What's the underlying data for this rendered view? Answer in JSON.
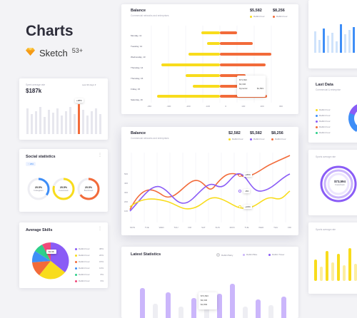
{
  "brand": {
    "title": "Charts",
    "app": "Sketch",
    "count": "53+"
  },
  "top_balance": {
    "title": "Balance",
    "subtitle": "Commercial networks and enterprises",
    "val1": "$5,582",
    "val2": "$8,256",
    "legend1": "Rabbit Four",
    "legend2": "Rabbit Four",
    "days": [
      "Monday, 11",
      "Tuesday, 12",
      "Wednesday, 13",
      "Thursday, 14",
      "Thursday, 15",
      "Friday, 15",
      "Saturday, 16",
      "Sunday, 17"
    ],
    "xticks": [
      "-360",
      "-300",
      "-200",
      "-100",
      "0",
      "100",
      "200",
      "300"
    ],
    "tooltip": {
      "a": "$73,693",
      "b": "$3,346",
      "label": "Dynamic",
      "val": "$1,893"
    },
    "colors": {
      "yellow": "#f8dc1c",
      "orange": "#f26b3a"
    }
  },
  "spent": {
    "title": "Spent average rate",
    "value": "$187k",
    "filter": "Last 30 days",
    "badge": "+28%"
  },
  "social": {
    "title": "Social statistics",
    "badge": "↑ 18%",
    "rings": [
      {
        "pct": "25.5%",
        "name": "Instagram",
        "color": "#3e8ef7",
        "level": 0.35
      },
      {
        "pct": "25.5%",
        "name": "Facebook",
        "color": "#f8dc1c",
        "level": 0.8
      },
      {
        "pct": "25.5%",
        "name": "Buzzfeed",
        "color": "#f26b3a",
        "level": 0.65
      }
    ]
  },
  "skills": {
    "title": "Average Skills",
    "tooltip": "$1.9K",
    "legend": [
      {
        "name": "Rabbit Four",
        "pct": "38%",
        "color": "#8a5cf6"
      },
      {
        "name": "Rabbit Four",
        "pct": "20%",
        "color": "#f8dc1c"
      },
      {
        "name": "Rabbit Four",
        "pct": "15%",
        "color": "#f26b3a"
      },
      {
        "name": "Rabbit Four",
        "pct": "13%",
        "color": "#3e8ef7"
      },
      {
        "name": "Rabbit Four",
        "pct": "8%",
        "color": "#2ecf8a"
      },
      {
        "name": "Rabbit Four",
        "pct": "6%",
        "color": "#f04a7a"
      }
    ]
  },
  "line_balance": {
    "title": "Balance",
    "subtitle": "Commercial networks and enterprises",
    "v1": "$2,582",
    "v2": "$5,582",
    "v3": "$8,256",
    "legend": [
      "Rabbit Four",
      "Rabbit Four",
      "Rabbit Four"
    ],
    "yticks": [
      "500",
      "400",
      "300",
      "200",
      "100"
    ],
    "xticks": [
      "MON",
      "TUE",
      "WED",
      "THU",
      "FRI",
      "SAT",
      "SUN",
      "MON",
      "TUE",
      "WED",
      "THU",
      "FRI"
    ],
    "labels": [
      "+26%",
      "-9%",
      "+24%"
    ]
  },
  "latest": {
    "title": "Latest Statistics",
    "legend": [
      "Rabbit Baby",
      "Rabbit Bike",
      "Rabbit Tower"
    ],
    "tooltip": [
      "$73,693",
      "$3,346",
      "$1,893"
    ]
  },
  "right": {
    "last_data_title": "Last Data",
    "last_data_sub": "Commercial & enterprise",
    "last_data_legend": [
      {
        "name": "Rabbit Four",
        "color": "#f8dc1c"
      },
      {
        "name": "Rabbit Four",
        "color": "#3e8ef7"
      },
      {
        "name": "Rabbit Four",
        "color": "#8a5cf6"
      },
      {
        "name": "Rabbit Four",
        "color": "#f26b3a"
      },
      {
        "name": "Rabbit Four",
        "color": "#2ecf8a"
      }
    ],
    "ring_title": "Sports average rate",
    "ring_value": "$73,594",
    "ring_label": "Facebook",
    "bars_title": "Sports average rate"
  }
}
